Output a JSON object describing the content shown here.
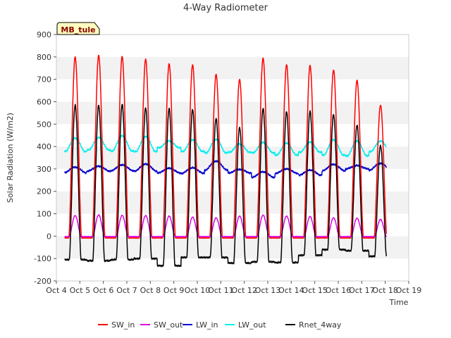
{
  "chart_data": {
    "type": "line",
    "title": "4-Way Radiometer",
    "xlabel": "Time",
    "ylabel": "Solar Radiation (W/m2)",
    "annotation": "MB_tule",
    "xlim": [
      4,
      19
    ],
    "ylim": [
      -200,
      900
    ],
    "x_ticks": [
      {
        "value": 4,
        "label": "Oct 4"
      },
      {
        "value": 5,
        "label": "Oct 5"
      },
      {
        "value": 6,
        "label": "Oct 6"
      },
      {
        "value": 7,
        "label": "Oct 7"
      },
      {
        "value": 8,
        "label": "Oct 8"
      },
      {
        "value": 9,
        "label": "Oct 9"
      },
      {
        "value": 10,
        "label": "Oct 10"
      },
      {
        "value": 11,
        "label": "Oct 11"
      },
      {
        "value": 12,
        "label": "Oct 12"
      },
      {
        "value": 13,
        "label": "Oct 13"
      },
      {
        "value": 14,
        "label": "Oct 14"
      },
      {
        "value": 15,
        "label": "Oct 15"
      },
      {
        "value": 16,
        "label": "Oct 16"
      },
      {
        "value": 17,
        "label": "Oct 17"
      },
      {
        "value": 18,
        "label": "Oct 18"
      },
      {
        "value": 19,
        "label": "Oct 19"
      }
    ],
    "y_ticks": [
      -200,
      -100,
      0,
      100,
      200,
      300,
      400,
      500,
      600,
      700,
      800,
      900
    ],
    "grid": "horizontal bands",
    "legend_position": "bottom",
    "day_peaks": {
      "days": [
        4.8,
        5.8,
        6.8,
        7.8,
        8.8,
        9.8,
        10.8,
        11.8,
        12.8,
        13.8,
        14.8,
        15.8,
        16.8,
        17.8
      ],
      "SW_in": [
        800,
        808,
        802,
        790,
        770,
        765,
        722,
        700,
        795,
        765,
        762,
        742,
        695,
        585
      ],
      "SW_out": [
        92,
        95,
        93,
        92,
        90,
        85,
        82,
        90,
        94,
        90,
        88,
        82,
        80,
        75
      ],
      "LW_in_day": [
        308,
        312,
        318,
        322,
        303,
        305,
        335,
        298,
        287,
        300,
        295,
        320,
        315,
        325
      ],
      "LW_in_night": [
        283,
        290,
        292,
        290,
        282,
        280,
        295,
        282,
        262,
        280,
        272,
        292,
        300,
        295
      ],
      "LW_out_day": [
        438,
        440,
        448,
        445,
        425,
        430,
        432,
        412,
        418,
        415,
        420,
        430,
        425,
        425
      ],
      "LW_out_night": [
        378,
        385,
        380,
        378,
        395,
        378,
        372,
        375,
        372,
        362,
        375,
        362,
        358,
        378
      ],
      "Rnet_4way_day": [
        585,
        585,
        588,
        572,
        570,
        565,
        525,
        485,
        570,
        555,
        558,
        543,
        495,
        405
      ],
      "Rnet_4way_night": [
        -105,
        -110,
        -105,
        -100,
        -132,
        -95,
        -95,
        -120,
        -115,
        -118,
        -85,
        -60,
        -65,
        -90
      ]
    },
    "series": [
      {
        "name": "SW_in",
        "color": "#ff0000"
      },
      {
        "name": "SW_out",
        "color": "#e000e0"
      },
      {
        "name": "LW_in",
        "color": "#0000cc"
      },
      {
        "name": "LW_out",
        "color": "#00eeee"
      },
      {
        "name": "Rnet_4way",
        "color": "#000000"
      }
    ]
  }
}
